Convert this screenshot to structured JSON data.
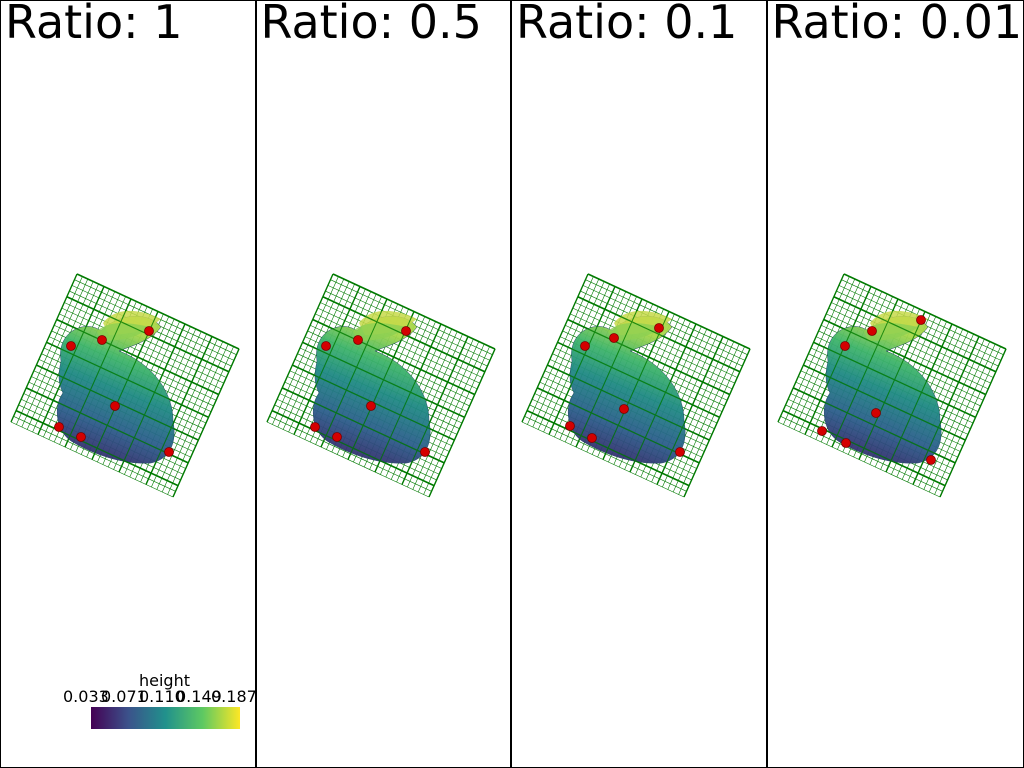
{
  "panels": [
    {
      "title": "Ratio: 1"
    },
    {
      "title": "Ratio: 0.5"
    },
    {
      "title": "Ratio: 0.1"
    },
    {
      "title": "Ratio: 0.01"
    }
  ],
  "scalar_bar": {
    "title": "height",
    "ticks": [
      "0.033",
      "0.071",
      "0.110",
      "0.149",
      "0.187"
    ],
    "colormap": [
      "#440154",
      "#3b528b",
      "#21918c",
      "#5ec962",
      "#fde725"
    ]
  },
  "colors": {
    "grid": "#007a00",
    "points": "#d40000",
    "frame": "#000000"
  }
}
